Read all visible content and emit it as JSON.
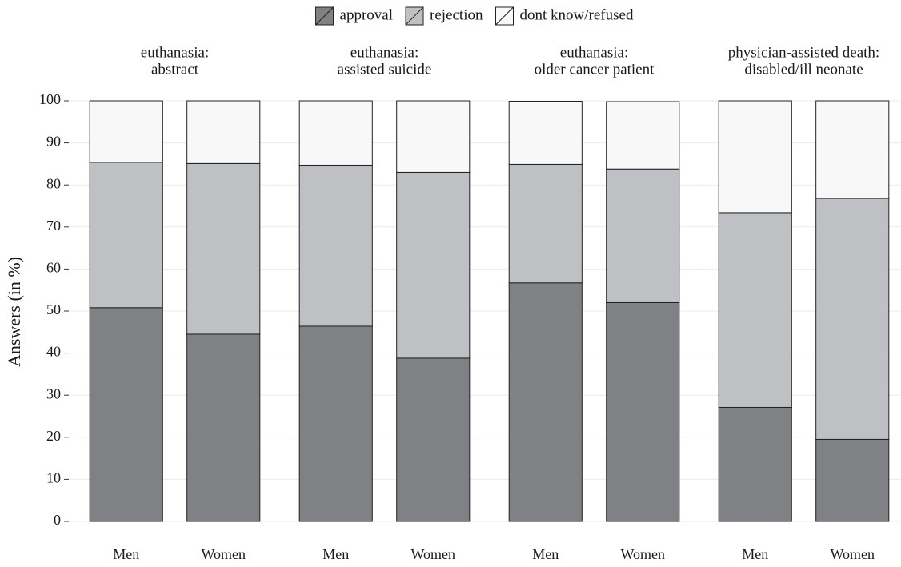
{
  "chart_data": {
    "type": "stacked_bar",
    "y_label": "Answers (in %)",
    "ylim": [
      0,
      100
    ],
    "yticks": [
      0,
      10,
      20,
      30,
      40,
      50,
      60,
      70,
      80,
      90,
      100
    ],
    "grid": true,
    "legend_position": "top",
    "facets": [
      {
        "title": [
          "euthanasia:",
          "abstract"
        ]
      },
      {
        "title": [
          "euthanasia:",
          "assisted suicide"
        ]
      },
      {
        "title": [
          "euthanasia:",
          "older cancer patient"
        ]
      },
      {
        "title": [
          "physician-assisted death:",
          "disabled/ill neonate"
        ]
      }
    ],
    "categories": [
      "Men",
      "Women",
      "Men",
      "Women",
      "Men",
      "Women",
      "Men",
      "Women"
    ],
    "series": [
      {
        "name": "approval",
        "color": "#808184",
        "values": [
          50.8,
          44.5,
          46.4,
          38.8,
          56.7,
          52.0,
          27.1,
          19.5
        ]
      },
      {
        "name": "rejection",
        "color": "#bfc0c4",
        "values": [
          34.6,
          40.6,
          38.3,
          44.2,
          28.2,
          31.8,
          46.3,
          57.3
        ]
      },
      {
        "name": "dont know/refused",
        "color": "#f8f8f8",
        "values": [
          14.6,
          14.9,
          15.3,
          17.0,
          15.0,
          16.0,
          26.6,
          23.2
        ]
      }
    ]
  }
}
